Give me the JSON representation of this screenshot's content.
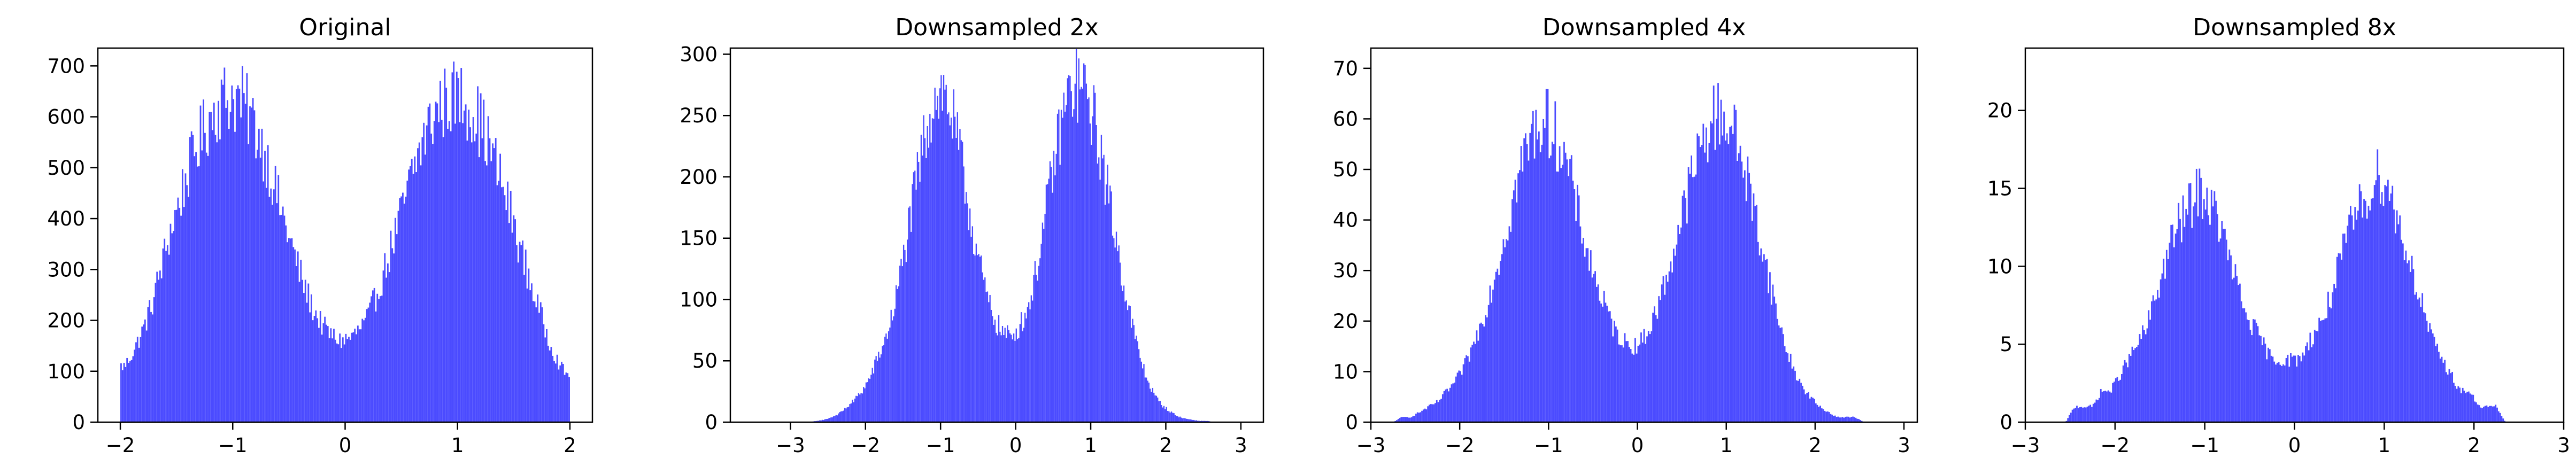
{
  "chart_data": [
    {
      "type": "bar",
      "title": "Original",
      "xlabel": "",
      "ylabel": "",
      "xlim": [
        -2.2,
        2.2
      ],
      "ylim": [
        0,
        735
      ],
      "xticks": [
        -2,
        -1,
        0,
        1,
        2
      ],
      "yticks": [
        0,
        100,
        200,
        300,
        400,
        500,
        600,
        700
      ],
      "bar_color": "#4b4bff",
      "grid": false,
      "bin_range": [
        -2.0,
        2.0
      ],
      "bin_centers": [
        -1.96,
        -1.88,
        -1.8,
        -1.72,
        -1.64,
        -1.56,
        -1.48,
        -1.4,
        -1.32,
        -1.24,
        -1.16,
        -1.08,
        -1.0,
        -0.92,
        -0.84,
        -0.76,
        -0.68,
        -0.6,
        -0.52,
        -0.44,
        -0.36,
        -0.28,
        -0.2,
        -0.12,
        -0.04,
        0.04,
        0.12,
        0.2,
        0.28,
        0.36,
        0.44,
        0.52,
        0.6,
        0.68,
        0.76,
        0.84,
        0.92,
        1.0,
        1.08,
        1.16,
        1.24,
        1.32,
        1.4,
        1.48,
        1.56,
        1.64,
        1.72,
        1.8,
        1.88,
        1.96
      ],
      "values": [
        110,
        140,
        180,
        230,
        300,
        370,
        430,
        490,
        540,
        580,
        615,
        635,
        640,
        630,
        600,
        560,
        505,
        440,
        380,
        320,
        265,
        220,
        190,
        170,
        160,
        165,
        180,
        205,
        250,
        305,
        365,
        425,
        490,
        545,
        590,
        620,
        635,
        640,
        630,
        605,
        570,
        520,
        465,
        405,
        340,
        280,
        225,
        170,
        125,
        95
      ]
    },
    {
      "type": "bar",
      "title": "Downsampled 2x",
      "xlabel": "",
      "ylabel": "",
      "xlim": [
        -3.8,
        3.3
      ],
      "ylim": [
        0,
        305
      ],
      "xticks": [
        -3,
        -2,
        -1,
        0,
        1,
        2,
        3
      ],
      "yticks": [
        0,
        50,
        100,
        150,
        200,
        250,
        300
      ],
      "bar_color": "#4b4bff",
      "grid": false,
      "bin_range": [
        -3.5,
        3.0
      ],
      "bin_centers": [
        -3.45,
        -3.35,
        -3.25,
        -3.15,
        -3.05,
        -2.95,
        -2.85,
        -2.75,
        -2.65,
        -2.55,
        -2.45,
        -2.35,
        -2.25,
        -2.15,
        -2.05,
        -1.95,
        -1.85,
        -1.75,
        -1.65,
        -1.55,
        -1.45,
        -1.35,
        -1.25,
        -1.15,
        -1.05,
        -0.95,
        -0.85,
        -0.75,
        -0.65,
        -0.55,
        -0.45,
        -0.35,
        -0.25,
        -0.15,
        -0.05,
        0.05,
        0.15,
        0.25,
        0.35,
        0.45,
        0.55,
        0.65,
        0.75,
        0.85,
        0.95,
        1.05,
        1.15,
        1.25,
        1.35,
        1.45,
        1.55,
        1.65,
        1.75,
        1.85,
        1.95,
        2.05,
        2.15,
        2.25,
        2.35,
        2.45,
        2.55,
        2.65,
        2.75,
        2.85,
        2.95
      ],
      "values": [
        0,
        0,
        0,
        0,
        0,
        0,
        0,
        0,
        1,
        2,
        4,
        7,
        12,
        18,
        25,
        35,
        50,
        65,
        85,
        115,
        150,
        185,
        220,
        250,
        270,
        268,
        250,
        220,
        185,
        150,
        120,
        95,
        80,
        72,
        70,
        78,
        90,
        115,
        150,
        190,
        225,
        255,
        272,
        275,
        265,
        245,
        215,
        180,
        145,
        110,
        80,
        55,
        35,
        22,
        14,
        9,
        5,
        3,
        2,
        1,
        1,
        0,
        0,
        0,
        0
      ]
    },
    {
      "type": "bar",
      "title": "Downsampled 4x",
      "xlabel": "",
      "ylabel": "",
      "xlim": [
        -3.0,
        3.15
      ],
      "ylim": [
        0,
        74
      ],
      "xticks": [
        -3,
        -2,
        -1,
        0,
        1,
        2,
        3
      ],
      "yticks": [
        0,
        10,
        20,
        30,
        40,
        50,
        60,
        70
      ],
      "bar_color": "#4b4bff",
      "grid": false,
      "bin_range": [
        -2.8,
        2.8
      ],
      "bin_centers": [
        -2.75,
        -2.65,
        -2.55,
        -2.45,
        -2.35,
        -2.25,
        -2.15,
        -2.05,
        -1.95,
        -1.85,
        -1.75,
        -1.65,
        -1.55,
        -1.45,
        -1.35,
        -1.25,
        -1.15,
        -1.05,
        -0.95,
        -0.85,
        -0.75,
        -0.65,
        -0.55,
        -0.45,
        -0.35,
        -0.25,
        -0.15,
        -0.05,
        0.05,
        0.15,
        0.25,
        0.35,
        0.45,
        0.55,
        0.65,
        0.75,
        0.85,
        0.95,
        1.05,
        1.15,
        1.25,
        1.35,
        1.45,
        1.55,
        1.65,
        1.75,
        1.85,
        1.95,
        2.05,
        2.15,
        2.25,
        2.35,
        2.45,
        2.55,
        2.65,
        2.75
      ],
      "values": [
        0,
        1,
        1,
        2,
        3,
        4,
        6,
        8,
        11,
        15,
        20,
        26,
        33,
        40,
        48,
        54,
        58,
        60,
        58,
        54,
        48,
        40,
        33,
        27,
        22,
        18,
        16,
        15,
        16,
        19,
        24,
        30,
        37,
        44,
        51,
        56,
        60,
        61,
        59,
        54,
        47,
        39,
        31,
        23,
        16,
        11,
        7,
        5,
        3,
        2,
        1,
        1,
        1,
        0,
        0,
        0
      ]
    },
    {
      "type": "bar",
      "title": "Downsampled 8x",
      "xlabel": "",
      "ylabel": "",
      "xlim": [
        -3.0,
        3.0
      ],
      "ylim": [
        0,
        24
      ],
      "xticks": [
        -3,
        -2,
        -1,
        0,
        1,
        2,
        3
      ],
      "yticks": [
        0,
        5,
        10,
        15,
        20
      ],
      "bar_color": "#4b4bff",
      "grid": false,
      "bin_range": [
        -2.6,
        2.6
      ],
      "bin_centers": [
        -2.55,
        -2.45,
        -2.35,
        -2.25,
        -2.15,
        -2.05,
        -1.95,
        -1.85,
        -1.75,
        -1.65,
        -1.55,
        -1.45,
        -1.35,
        -1.25,
        -1.15,
        -1.05,
        -0.95,
        -0.85,
        -0.75,
        -0.65,
        -0.55,
        -0.45,
        -0.35,
        -0.25,
        -0.15,
        -0.05,
        0.05,
        0.15,
        0.25,
        0.35,
        0.45,
        0.55,
        0.65,
        0.75,
        0.85,
        0.95,
        1.05,
        1.15,
        1.25,
        1.35,
        1.45,
        1.55,
        1.65,
        1.75,
        1.85,
        1.95,
        2.05,
        2.15,
        2.25,
        2.35,
        2.45,
        2.55
      ],
      "values": [
        0,
        1,
        1,
        1,
        2,
        2,
        3,
        4,
        5,
        6,
        8,
        10,
        12,
        13,
        14,
        15,
        14,
        13,
        11,
        9,
        7,
        6,
        5,
        4,
        4,
        4,
        4,
        5,
        6,
        7,
        9,
        11,
        13,
        14,
        15,
        16,
        15,
        13,
        11,
        9,
        7,
        5,
        4,
        3,
        2,
        2,
        1,
        1,
        1,
        0,
        0,
        0
      ]
    }
  ]
}
